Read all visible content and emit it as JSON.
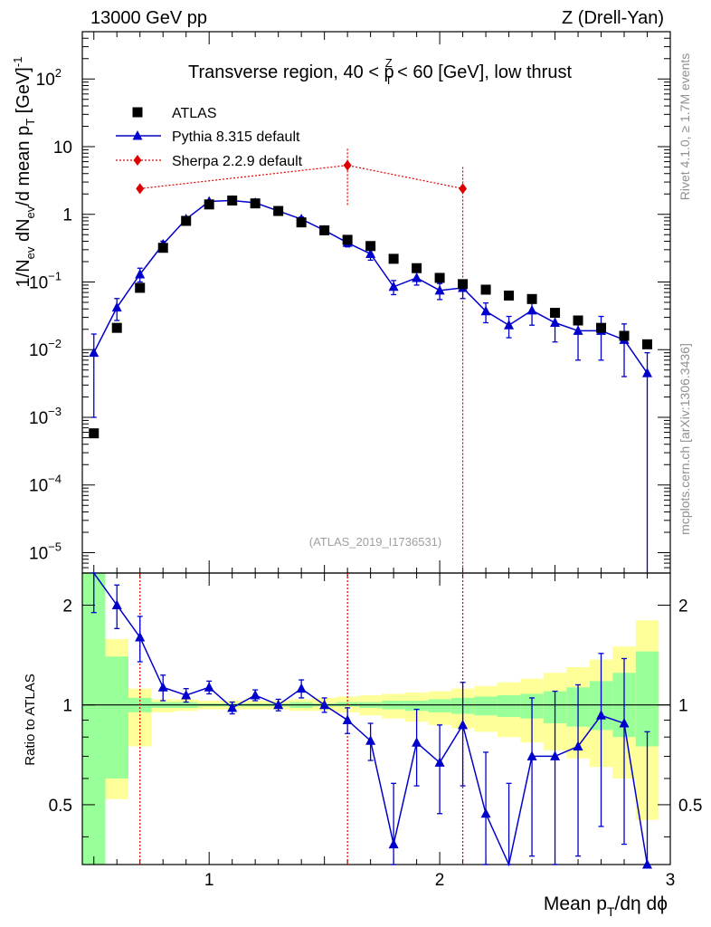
{
  "header": {
    "left": "13000 GeV pp",
    "right": "Z (Drell-Yan)"
  },
  "side_labels": {
    "rivet": "Rivet 4.1.0, ≥ 1.7M events",
    "mcplots": "mcplots.cern.ch [arXiv:1306.3436]"
  },
  "analysis_id": "(ATLAS_2019_I1736531)",
  "colors": {
    "atlas": "#000000",
    "pythia": "#0000cc",
    "sherpa": "#dd0000",
    "band_inner": "#99ff99",
    "band_outer": "#ffff99"
  },
  "chart_data": {
    "type": "scatter",
    "title": "Transverse region, 40 < p_T^Z < 60 [GeV], low thrust",
    "title_parts": {
      "pre": "Transverse region, 40 < p",
      "sup": "Z",
      "sub": "T",
      "post": " < 60 [GeV], low thrust"
    },
    "xlabel": "Mean p_T/dη dϕ",
    "xlabel_parts": {
      "pre": "Mean p",
      "sub": "T",
      "post": "/dη dϕ"
    },
    "ylabel": "1/N_ev dN_ev/d mean p_T [GeV]^-1",
    "ylabel_parts": {
      "a": "1/N",
      "a_sub": "ev",
      "b": " dN",
      "b_sub": "ev",
      "c": "/d mean p",
      "c_sub": "T",
      "d": " [GeV]",
      "d_sup": "-1"
    },
    "ratio_ylabel": "Ratio to ATLAS",
    "xlim": [
      0.45,
      3.0
    ],
    "ylim": [
      5e-06,
      500
    ],
    "yscale": "log",
    "ratio_ylim": [
      0.33,
      2.5
    ],
    "xticks": [
      1,
      2,
      3
    ],
    "xtick_labels": [
      "1",
      "2",
      "3"
    ],
    "yticks": [
      {
        "v": 100,
        "base": "10",
        "exp": "2"
      },
      {
        "v": 10,
        "base": "10",
        "exp": ""
      },
      {
        "v": 1,
        "base": "1",
        "exp": ""
      },
      {
        "v": 0.1,
        "base": "10",
        "exp": "−1"
      },
      {
        "v": 0.01,
        "base": "10",
        "exp": "−2"
      },
      {
        "v": 0.001,
        "base": "10",
        "exp": "−3"
      },
      {
        "v": 0.0001,
        "base": "10",
        "exp": "−4"
      },
      {
        "v": 1e-05,
        "base": "10",
        "exp": "−5"
      }
    ],
    "ratio_yticks": [
      0.5,
      1,
      2
    ],
    "ratio_ytick_labels": [
      "0.5",
      "1",
      "2"
    ],
    "legend": [
      {
        "key": "atlas",
        "label": "ATLAS"
      },
      {
        "key": "pythia",
        "label": "Pythia 8.315 default"
      },
      {
        "key": "sherpa",
        "label": "Sherpa 2.2.9 default"
      }
    ],
    "series": [
      {
        "name": "ATLAS",
        "key": "atlas",
        "x": [
          0.5,
          0.6,
          0.7,
          0.8,
          0.9,
          1.0,
          1.1,
          1.2,
          1.3,
          1.4,
          1.5,
          1.6,
          1.7,
          1.8,
          1.9,
          2.0,
          2.1,
          2.2,
          2.3,
          2.4,
          2.5,
          2.6,
          2.7,
          2.8,
          2.9
        ],
        "y": [
          0.00058,
          0.021,
          0.082,
          0.32,
          0.8,
          1.4,
          1.6,
          1.45,
          1.12,
          0.76,
          0.58,
          0.42,
          0.34,
          0.22,
          0.16,
          0.115,
          0.093,
          0.077,
          0.063,
          0.056,
          0.035,
          0.027,
          0.021,
          0.016,
          0.012
        ]
      },
      {
        "name": "Pythia 8.315 default",
        "key": "pythia",
        "x": [
          0.5,
          0.6,
          0.7,
          0.8,
          0.9,
          1.0,
          1.1,
          1.2,
          1.3,
          1.4,
          1.5,
          1.6,
          1.7,
          1.8,
          1.9,
          2.0,
          2.1,
          2.2,
          2.3,
          2.4,
          2.5,
          2.6,
          2.7,
          2.8,
          2.9
        ],
        "y": [
          0.009,
          0.042,
          0.13,
          0.36,
          0.85,
          1.55,
          1.6,
          1.48,
          1.12,
          0.85,
          0.58,
          0.38,
          0.26,
          0.085,
          0.115,
          0.075,
          0.082,
          0.037,
          0.023,
          0.038,
          0.025,
          0.019,
          0.019,
          0.014,
          0.0045
        ],
        "err": [
          0.008,
          0.015,
          0.03,
          0.04,
          0.05,
          0.05,
          0.05,
          0.05,
          0.05,
          0.06,
          0.05,
          0.05,
          0.05,
          0.02,
          0.025,
          0.02,
          0.025,
          0.012,
          0.008,
          0.015,
          0.012,
          0.012,
          0.012,
          0.01,
          0.0045
        ]
      },
      {
        "name": "Sherpa 2.2.9 default",
        "key": "sherpa",
        "x": [
          0.7,
          1.6,
          2.1
        ],
        "y": [
          2.4,
          5.3,
          2.4
        ],
        "err": [
          0,
          4.0,
          2.6
        ]
      }
    ],
    "ratio": {
      "pythia": [
        2.7,
        2.0,
        1.6,
        1.13,
        1.07,
        1.13,
        0.98,
        1.07,
        1.0,
        1.12,
        1.0,
        0.9,
        0.78,
        0.38,
        0.77,
        0.67,
        0.87,
        0.47,
        0.28,
        0.7,
        0.7,
        0.75,
        0.93,
        0.88,
        0.33
      ],
      "pythia_err": [
        0.8,
        0.3,
        0.25,
        0.1,
        0.05,
        0.05,
        0.04,
        0.04,
        0.04,
        0.07,
        0.05,
        0.08,
        0.1,
        0.2,
        0.2,
        0.2,
        0.3,
        0.25,
        0.3,
        0.35,
        0.4,
        0.4,
        0.5,
        0.5,
        0.5
      ],
      "band_edges": [
        0.45,
        0.55,
        0.65,
        0.75,
        0.85,
        0.95,
        1.05,
        1.15,
        1.25,
        1.35,
        1.45,
        1.55,
        1.65,
        1.75,
        1.85,
        1.95,
        2.05,
        2.15,
        2.25,
        2.35,
        2.45,
        2.55,
        2.65,
        2.75,
        2.85,
        2.95
      ],
      "inner_lo": [
        0.3,
        0.6,
        0.95,
        0.98,
        0.98,
        0.99,
        0.99,
        0.99,
        0.99,
        0.98,
        0.99,
        0.99,
        0.98,
        0.97,
        0.96,
        0.95,
        0.94,
        0.93,
        0.92,
        0.91,
        0.88,
        0.86,
        0.84,
        0.8,
        0.75
      ],
      "inner_hi": [
        2.5,
        1.4,
        1.05,
        1.02,
        1.02,
        1.01,
        1.01,
        1.01,
        1.01,
        1.02,
        1.01,
        1.02,
        1.02,
        1.03,
        1.03,
        1.04,
        1.05,
        1.06,
        1.07,
        1.08,
        1.1,
        1.13,
        1.18,
        1.25,
        1.45
      ],
      "outer_lo": [
        0.3,
        0.52,
        0.75,
        0.95,
        0.96,
        0.97,
        0.97,
        0.97,
        0.97,
        0.96,
        0.96,
        0.95,
        0.93,
        0.91,
        0.89,
        0.87,
        0.85,
        0.83,
        0.8,
        0.77,
        0.73,
        0.69,
        0.65,
        0.6,
        0.45
      ],
      "outer_hi": [
        2.5,
        1.58,
        1.12,
        1.04,
        1.04,
        1.03,
        1.03,
        1.03,
        1.03,
        1.04,
        1.05,
        1.06,
        1.07,
        1.08,
        1.09,
        1.1,
        1.12,
        1.14,
        1.17,
        1.2,
        1.25,
        1.3,
        1.37,
        1.5,
        1.8
      ]
    }
  }
}
